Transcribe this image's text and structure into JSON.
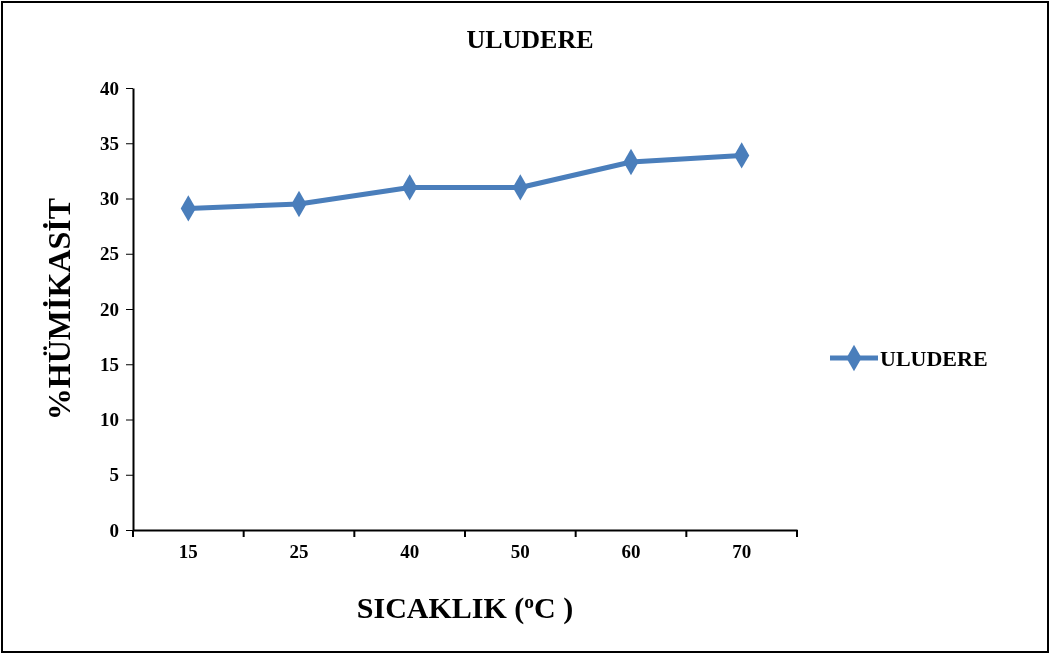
{
  "chart_data": {
    "type": "line",
    "title": "ULUDERE",
    "xlabel": "SICAKLIK ($^{o}$C )",
    "ylabel": "%HÜMİKASİT",
    "categories": [
      "15",
      "25",
      "40",
      "50",
      "60",
      "70"
    ],
    "series": [
      {
        "name": "ULUDERE",
        "color": "#4a7ebb",
        "values": [
          29.1,
          29.5,
          31.0,
          31.0,
          33.3,
          33.9
        ]
      }
    ],
    "ylim": [
      0,
      40
    ],
    "yticks": [
      0,
      5,
      10,
      15,
      20,
      25,
      30,
      35,
      40
    ],
    "legend": "right",
    "marker": "diamond",
    "line_style": "solid"
  }
}
